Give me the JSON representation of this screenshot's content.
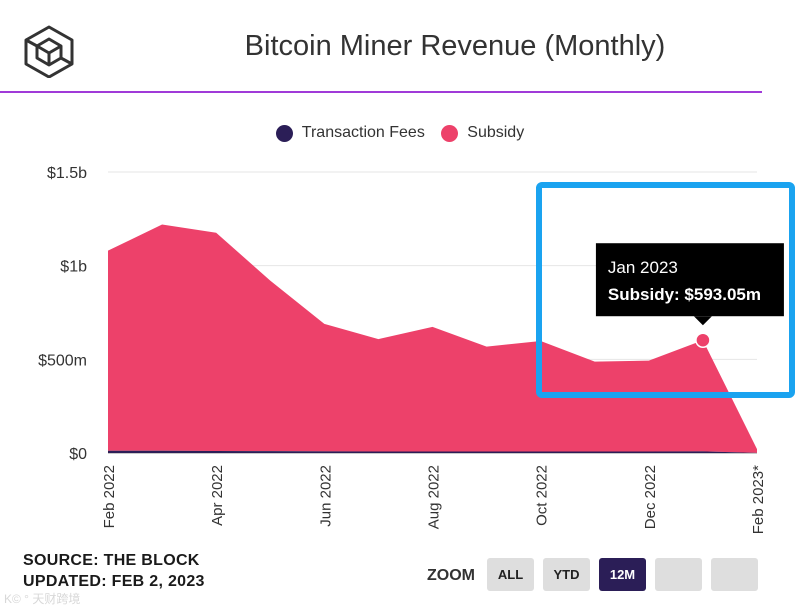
{
  "header": {
    "title": "Bitcoin Miner Revenue (Monthly)"
  },
  "colors": {
    "fees": "#2b1e57",
    "subsidy": "#ed416a",
    "accent": "#a03ad8",
    "highlight": "#1aa3f0"
  },
  "chart_data": {
    "type": "area",
    "stacked": true,
    "title": "Bitcoin Miner Revenue (Monthly)",
    "x": [
      "Feb 2022",
      "Mar 2022",
      "Apr 2022",
      "May 2022",
      "Jun 2022",
      "Jul 2022",
      "Aug 2022",
      "Sep 2022",
      "Oct 2022",
      "Nov 2022",
      "Dec 2022",
      "Jan 2023",
      "Feb 2023*"
    ],
    "x_tick_labels": [
      "Feb 2022",
      "Apr 2022",
      "Jun 2022",
      "Aug 2022",
      "Oct 2022",
      "Dec 2022",
      "Feb 2023*"
    ],
    "series": [
      {
        "name": "Transaction Fees",
        "color": "#2b1e57",
        "values": [
          12,
          12,
          11,
          10,
          9,
          8,
          8,
          8,
          8,
          8,
          8,
          9,
          1
        ]
      },
      {
        "name": "Subsidy",
        "color": "#ed416a",
        "values": [
          1068,
          1208,
          1165,
          910,
          680,
          600,
          665,
          560,
          590,
          480,
          485,
          593.05,
          20
        ]
      }
    ],
    "yaxis": {
      "min": 0,
      "max": 1500,
      "ticks": [
        0,
        500,
        1000,
        1500
      ],
      "tick_labels": [
        "$0",
        "$500m",
        "$1b",
        "$1.5b"
      ]
    },
    "legend": [
      "Transaction Fees",
      "Subsidy"
    ],
    "legend_position": "top-center",
    "grid": true,
    "tooltip": {
      "title": "Jan 2023",
      "text": "Subsidy: $593.05m",
      "index": 11
    }
  },
  "footer": {
    "source": "SOURCE: THE BLOCK",
    "updated": "UPDATED: FEB 2, 2023"
  },
  "zoom": {
    "label": "ZOOM",
    "buttons": [
      "ALL",
      "YTD",
      "12M",
      "",
      ""
    ],
    "active_index": 2
  },
  "watermark": "K© ° 天财跨境"
}
